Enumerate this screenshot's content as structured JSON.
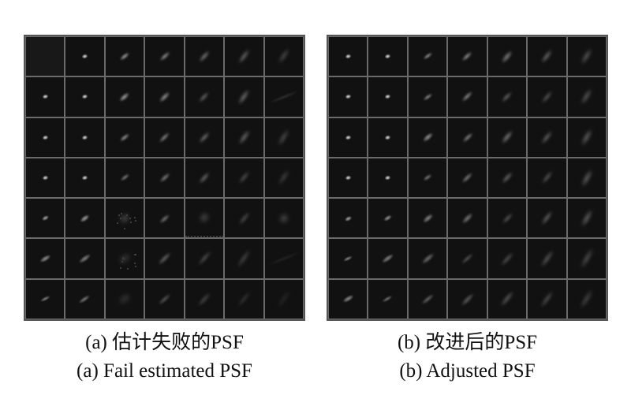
{
  "figure": {
    "panel_a": {
      "caption_cn": "(a) 估计失败的PSF",
      "caption_en": "(a) Fail estimated PSF"
    },
    "panel_b": {
      "caption_cn": "(b) 改进后的PSF",
      "caption_en": "(b) Adjusted PSF"
    }
  },
  "colors": {
    "cell_background": "#111111",
    "grid_lines": "#6a6a6a",
    "caption_text": "#111111"
  }
}
